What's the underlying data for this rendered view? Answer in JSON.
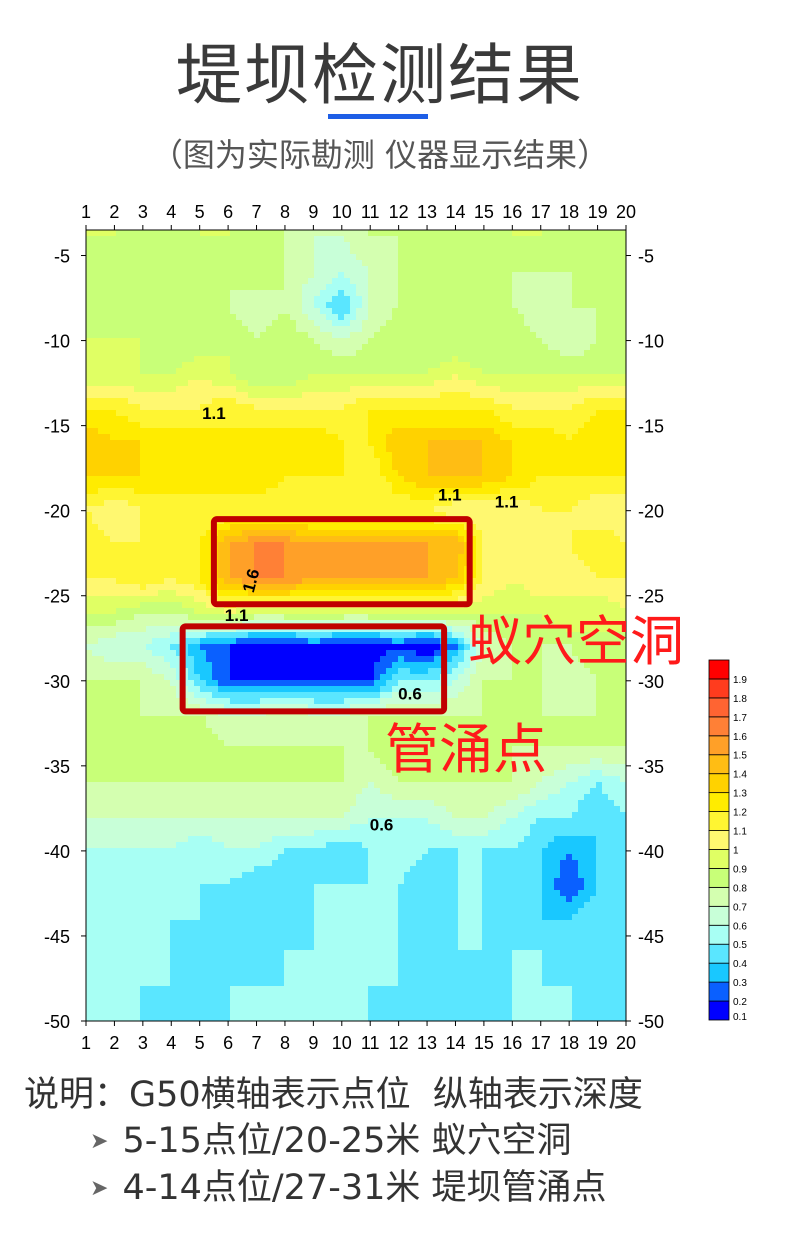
{
  "title": "堤坝检测结果",
  "subtitle": "（图为实际勘测 仪器显示结果）",
  "accent_color": "#1e5ee6",
  "chart_data": {
    "type": "heatmap",
    "title": "",
    "xlabel": "",
    "ylabel": "",
    "x": [
      1,
      2,
      3,
      4,
      5,
      6,
      7,
      8,
      9,
      10,
      11,
      12,
      13,
      14,
      15,
      16,
      17,
      18,
      19,
      20
    ],
    "xlim": [
      1,
      20
    ],
    "ylim": [
      -50,
      -3.5
    ],
    "yticks": [
      -5,
      -10,
      -15,
      -20,
      -25,
      -30,
      -35,
      -40,
      -45,
      -50
    ],
    "y": [
      -4,
      -6,
      -8,
      -10,
      -12,
      -14,
      -16,
      -18,
      -20,
      -22,
      -24,
      -26,
      -28,
      -30,
      -32,
      -34,
      -36,
      -38,
      -40,
      -42,
      -44,
      -46,
      -48,
      -50
    ],
    "values": [
      [
        0.9,
        0.9,
        0.8,
        0.8,
        0.9,
        0.9,
        0.8,
        0.8,
        0.7,
        0.7,
        0.8,
        0.8,
        0.9,
        0.8,
        0.8,
        0.9,
        0.9,
        0.8,
        0.8,
        0.8
      ],
      [
        0.8,
        0.8,
        0.9,
        0.9,
        0.8,
        0.8,
        0.9,
        0.8,
        0.7,
        0.6,
        0.7,
        0.8,
        0.8,
        0.9,
        0.9,
        0.8,
        0.8,
        0.8,
        0.9,
        0.9
      ],
      [
        0.8,
        0.9,
        0.8,
        0.8,
        0.9,
        0.8,
        0.7,
        0.8,
        0.6,
        0.4,
        0.7,
        0.8,
        0.8,
        0.8,
        0.9,
        0.8,
        0.7,
        0.8,
        0.8,
        0.9
      ],
      [
        0.9,
        0.9,
        0.9,
        0.8,
        0.8,
        0.9,
        0.8,
        0.9,
        0.8,
        0.7,
        0.8,
        0.9,
        0.8,
        0.8,
        0.8,
        0.9,
        0.8,
        0.7,
        0.8,
        0.8
      ],
      [
        0.9,
        0.9,
        0.9,
        0.9,
        1.0,
        0.9,
        0.8,
        0.8,
        0.9,
        0.9,
        0.9,
        0.9,
        0.9,
        1.0,
        0.9,
        0.9,
        0.9,
        0.9,
        0.9,
        0.9
      ],
      [
        1.2,
        1.2,
        1.1,
        1.1,
        1.1,
        1.2,
        1.1,
        1.1,
        1.1,
        1.1,
        1.2,
        1.2,
        1.2,
        1.2,
        1.2,
        1.1,
        1.1,
        1.1,
        1.2,
        1.2
      ],
      [
        1.4,
        1.3,
        1.3,
        1.3,
        1.3,
        1.2,
        1.3,
        1.3,
        1.3,
        1.2,
        1.2,
        1.4,
        1.4,
        1.4,
        1.4,
        1.3,
        1.3,
        1.2,
        1.3,
        1.3
      ],
      [
        1.3,
        1.3,
        1.3,
        1.2,
        1.3,
        1.3,
        1.3,
        1.2,
        1.2,
        1.2,
        1.1,
        1.3,
        1.4,
        1.4,
        1.4,
        1.3,
        1.2,
        1.2,
        1.2,
        1.2
      ],
      [
        1.1,
        1.0,
        1.1,
        1.2,
        1.1,
        1.1,
        1.1,
        1.1,
        1.1,
        1.1,
        1.1,
        1.1,
        1.1,
        1.0,
        1.0,
        1.0,
        1.1,
        1.1,
        1.0,
        1.0
      ],
      [
        1.2,
        1.1,
        1.1,
        1.1,
        1.2,
        1.5,
        1.6,
        1.6,
        1.5,
        1.5,
        1.5,
        1.5,
        1.5,
        1.5,
        1.1,
        1.0,
        1.0,
        1.1,
        1.2,
        1.1
      ],
      [
        1.1,
        1.1,
        1.2,
        1.1,
        1.2,
        1.5,
        1.6,
        1.6,
        1.5,
        1.5,
        1.5,
        1.5,
        1.5,
        1.4,
        1.1,
        1.0,
        1.1,
        1.0,
        1.1,
        1.1
      ],
      [
        0.9,
        0.9,
        0.8,
        0.8,
        0.9,
        1.0,
        0.9,
        0.9,
        0.9,
        0.9,
        0.9,
        0.9,
        0.9,
        0.9,
        0.9,
        0.9,
        0.9,
        1.0,
        0.9,
        1.0
      ],
      [
        0.7,
        0.6,
        0.6,
        0.5,
        0.3,
        0.2,
        0.1,
        0.1,
        0.2,
        0.1,
        0.1,
        0.2,
        0.1,
        0.3,
        0.7,
        0.8,
        0.8,
        0.8,
        0.9,
        0.8
      ],
      [
        0.8,
        0.8,
        0.8,
        0.7,
        0.4,
        0.2,
        0.2,
        0.2,
        0.2,
        0.2,
        0.2,
        0.5,
        0.5,
        0.6,
        0.8,
        0.8,
        0.8,
        0.7,
        0.8,
        0.8
      ],
      [
        0.8,
        0.9,
        0.8,
        0.8,
        0.8,
        0.7,
        0.7,
        0.8,
        0.7,
        0.7,
        0.8,
        0.8,
        0.8,
        0.8,
        0.8,
        0.9,
        0.8,
        0.8,
        0.8,
        0.8
      ],
      [
        0.8,
        0.8,
        0.8,
        0.9,
        0.9,
        0.8,
        0.8,
        0.8,
        0.8,
        0.8,
        0.8,
        0.9,
        0.9,
        0.8,
        0.8,
        0.8,
        0.8,
        0.8,
        0.8,
        0.8
      ],
      [
        0.8,
        0.8,
        0.8,
        0.8,
        0.8,
        0.8,
        0.8,
        0.8,
        0.8,
        0.8,
        0.7,
        0.8,
        0.8,
        0.8,
        0.8,
        0.8,
        0.7,
        0.6,
        0.5,
        0.6
      ],
      [
        0.7,
        0.7,
        0.7,
        0.7,
        0.7,
        0.7,
        0.7,
        0.7,
        0.7,
        0.7,
        0.6,
        0.6,
        0.6,
        0.7,
        0.7,
        0.6,
        0.5,
        0.5,
        0.4,
        0.5
      ],
      [
        0.6,
        0.6,
        0.6,
        0.6,
        0.5,
        0.6,
        0.6,
        0.5,
        0.5,
        0.4,
        0.5,
        0.6,
        0.5,
        0.5,
        0.5,
        0.5,
        0.4,
        0.3,
        0.4,
        0.5
      ],
      [
        0.5,
        0.5,
        0.5,
        0.5,
        0.5,
        0.5,
        0.4,
        0.4,
        0.5,
        0.5,
        0.5,
        0.5,
        0.4,
        0.5,
        0.5,
        0.4,
        0.4,
        0.2,
        0.4,
        0.5
      ],
      [
        0.5,
        0.5,
        0.5,
        0.5,
        0.5,
        0.4,
        0.4,
        0.4,
        0.5,
        0.5,
        0.5,
        0.5,
        0.5,
        0.5,
        0.5,
        0.4,
        0.4,
        0.4,
        0.5,
        0.5
      ],
      [
        0.5,
        0.5,
        0.5,
        0.5,
        0.4,
        0.4,
        0.4,
        0.5,
        0.5,
        0.5,
        0.6,
        0.5,
        0.4,
        0.5,
        0.5,
        0.5,
        0.5,
        0.4,
        0.4,
        0.4
      ],
      [
        0.5,
        0.5,
        0.5,
        0.5,
        0.5,
        0.5,
        0.5,
        0.5,
        0.5,
        0.6,
        0.5,
        0.5,
        0.5,
        0.4,
        0.4,
        0.5,
        0.5,
        0.5,
        0.5,
        0.4
      ],
      [
        0.5,
        0.5,
        0.5,
        0.4,
        0.4,
        0.5,
        0.5,
        0.5,
        0.5,
        0.5,
        0.5,
        0.4,
        0.4,
        0.4,
        0.5,
        0.5,
        0.5,
        0.5,
        0.4,
        0.4
      ]
    ],
    "colorbar": {
      "labels": [
        "0.1",
        "0.2",
        "0.3",
        "0.4",
        "0.5",
        "0.6",
        "0.7",
        "0.8",
        "0.9",
        "1",
        "1.1",
        "1.2",
        "1.3",
        "1.4",
        "1.5",
        "1.6",
        "1.7",
        "1.8",
        "1.9"
      ],
      "colors": [
        "#0000ff",
        "#0a60ff",
        "#19c8ff",
        "#5ae6ff",
        "#a8fff4",
        "#c8ffd8",
        "#d4ffb0",
        "#c8ff78",
        "#e0ff64",
        "#fff870",
        "#fff532",
        "#ffec00",
        "#ffd200",
        "#ffbd14",
        "#ffa028",
        "#ff8036",
        "#ff6432",
        "#ff3c1e",
        "#ff0000"
      ]
    },
    "contour_labels": [
      {
        "text": "1.1",
        "x": 5.5,
        "y": -14.6
      },
      {
        "text": "1.1",
        "x": 13.8,
        "y": -19.4
      },
      {
        "text": "1.1",
        "x": 15.8,
        "y": -19.8
      },
      {
        "text": "1.6",
        "x": 7,
        "y": -24.2
      },
      {
        "text": "1.1",
        "x": 6.3,
        "y": -26.5
      },
      {
        "text": "0.6",
        "x": 12.4,
        "y": -31.1
      },
      {
        "text": "0.6",
        "x": 11.4,
        "y": -38.8
      }
    ],
    "annotations": [
      {
        "text": "蚁穴空洞",
        "x_range": [
          5.5,
          14.5
        ],
        "y_range": [
          -25.5,
          -20.5
        ],
        "color": "#c00000"
      },
      {
        "text": "管涌点",
        "x_range": [
          4.4,
          13.6
        ],
        "y_range": [
          -31.8,
          -26.8
        ],
        "color": "#c00000"
      }
    ],
    "annotation_text_color": "#ff1a1a"
  },
  "notes": {
    "heading": "说明：G50横轴表示点位  纵轴表示深度",
    "items": [
      "5-15点位/20-25米 蚁穴空洞",
      "4-14点位/27-31米 堤坝管涌点"
    ]
  }
}
